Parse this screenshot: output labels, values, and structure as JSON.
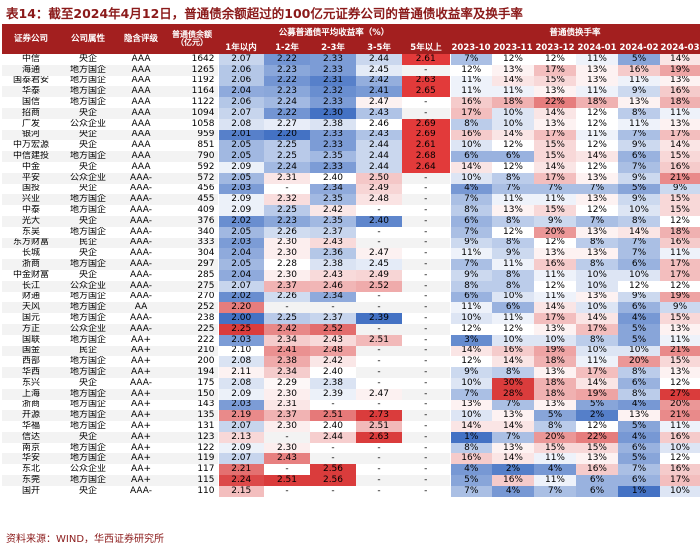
{
  "title": "表14：截至2024年4月12日，普通债余额超过的100亿元证券公司的普通债收益率及换手率",
  "headers": {
    "company": "证券公司",
    "attribute": "公司属性",
    "rating": "隐含评级",
    "balance": "普通债余额（亿元）",
    "yield_group": "公募普通债平均收益率（%）",
    "yield_cols": [
      "1年以内",
      "1-2年",
      "2-3年",
      "3-5年",
      "5年以上"
    ],
    "turnover_group": "普通债换手率",
    "turnover_cols": [
      "2023-10",
      "2023-11",
      "2023-12",
      "2024-01",
      "2024-02",
      "2024-03"
    ]
  },
  "rows": [
    {
      "company": "中信",
      "attr": "央企",
      "rating": "AAA",
      "balance": "1642",
      "yields": [
        "2.07",
        "2.22",
        "2.33",
        "2.44",
        "2.61"
      ],
      "turnover": [
        "7%",
        "12%",
        "12%",
        "11%",
        "5%",
        "14%"
      ]
    },
    {
      "company": "海通",
      "attr": "地方国企",
      "rating": "AAA",
      "balance": "1265",
      "yields": [
        "2.06",
        "2.23",
        "2.33",
        "2.45",
        "-"
      ],
      "turnover": [
        "12%",
        "13%",
        "17%",
        "13%",
        "16%",
        "19%"
      ]
    },
    {
      "company": "国泰君安",
      "attr": "地方国企",
      "rating": "AAA",
      "balance": "1192",
      "yields": [
        "2.06",
        "2.22",
        "2.31",
        "2.42",
        "2.63"
      ],
      "turnover": [
        "11%",
        "14%",
        "15%",
        "13%",
        "11%",
        "13%"
      ]
    },
    {
      "company": "华泰",
      "attr": "地方国企",
      "rating": "AAA",
      "balance": "1164",
      "yields": [
        "2.04",
        "2.23",
        "2.32",
        "2.41",
        "2.65"
      ],
      "turnover": [
        "11%",
        "11%",
        "13%",
        "11%",
        "9%",
        "16%"
      ]
    },
    {
      "company": "国信",
      "attr": "地方国企",
      "rating": "AAA",
      "balance": "1122",
      "yields": [
        "2.06",
        "2.24",
        "2.33",
        "2.47",
        "-"
      ],
      "turnover": [
        "16%",
        "18%",
        "22%",
        "18%",
        "13%",
        "18%"
      ]
    },
    {
      "company": "招商",
      "attr": "央企",
      "rating": "AAA",
      "balance": "1094",
      "yields": [
        "2.07",
        "2.22",
        "2.30",
        "2.43",
        "-"
      ],
      "turnover": [
        "17%",
        "10%",
        "14%",
        "12%",
        "8%",
        "11%"
      ]
    },
    {
      "company": "广发",
      "attr": "公众企业",
      "rating": "AAA",
      "balance": "1058",
      "yields": [
        "2.08",
        "2.27",
        "2.38",
        "2.46",
        "2.69"
      ],
      "turnover": [
        "8%",
        "10%",
        "13%",
        "12%",
        "11%",
        "13%"
      ]
    },
    {
      "company": "银河",
      "attr": "央企",
      "rating": "AAA",
      "balance": "959",
      "yields": [
        "2.01",
        "2.20",
        "2.33",
        "2.43",
        "2.69"
      ],
      "turnover": [
        "16%",
        "14%",
        "17%",
        "11%",
        "7%",
        "17%"
      ]
    },
    {
      "company": "中万宏源",
      "attr": "央企",
      "rating": "AAA",
      "balance": "851",
      "yields": [
        "2.05",
        "2.25",
        "2.33",
        "2.44",
        "2.61"
      ],
      "turnover": [
        "10%",
        "12%",
        "15%",
        "12%",
        "9%",
        "14%"
      ]
    },
    {
      "company": "中信建投",
      "attr": "地方国企",
      "rating": "AAA",
      "balance": "790",
      "yields": [
        "2.05",
        "2.25",
        "2.35",
        "2.44",
        "2.68"
      ],
      "turnover": [
        "6%",
        "6%",
        "15%",
        "14%",
        "6%",
        "15%"
      ]
    },
    {
      "company": "中金",
      "attr": "央企",
      "rating": "AAA",
      "balance": "592",
      "yields": [
        "2.09",
        "2.24",
        "2.33",
        "2.44",
        "2.64"
      ],
      "turnover": [
        "14%",
        "12%",
        "14%",
        "12%",
        "7%",
        "16%"
      ]
    },
    {
      "company": "平安",
      "attr": "公众企业",
      "rating": "AAA-",
      "balance": "572",
      "yields": [
        "2.05",
        "2.31",
        "2.40",
        "2.50",
        "-"
      ],
      "turnover": [
        "10%",
        "8%",
        "17%",
        "13%",
        "9%",
        "21%"
      ]
    },
    {
      "company": "国投",
      "attr": "央企",
      "rating": "AAA-",
      "balance": "456",
      "yields": [
        "2.03",
        "-",
        "2.34",
        "2.49",
        "-"
      ],
      "turnover": [
        "4%",
        "7%",
        "7%",
        "7%",
        "5%",
        "9%"
      ]
    },
    {
      "company": "兴业",
      "attr": "地方国企",
      "rating": "AAA-",
      "balance": "455",
      "yields": [
        "2.09",
        "2.32",
        "2.35",
        "2.48",
        "-"
      ],
      "turnover": [
        "7%",
        "11%",
        "11%",
        "13%",
        "9%",
        "15%"
      ]
    },
    {
      "company": "中泰",
      "attr": "地方国企",
      "rating": "AAA-",
      "balance": "409",
      "yields": [
        "2.09",
        "2.25",
        "2.42",
        "-",
        "-"
      ],
      "turnover": [
        "8%",
        "13%",
        "15%",
        "12%",
        "10%",
        "15%"
      ]
    },
    {
      "company": "光大",
      "attr": "央企",
      "rating": "AAA-",
      "balance": "376",
      "yields": [
        "2.02",
        "2.23",
        "2.35",
        "2.40",
        "-"
      ],
      "turnover": [
        "6%",
        "8%",
        "9%",
        "7%",
        "8%",
        "12%"
      ]
    },
    {
      "company": "东吴",
      "attr": "地方国企",
      "rating": "AAA-",
      "balance": "340",
      "yields": [
        "2.05",
        "2.26",
        "2.37",
        "-",
        "-"
      ],
      "turnover": [
        "7%",
        "12%",
        "20%",
        "13%",
        "14%",
        "18%"
      ]
    },
    {
      "company": "东方财富",
      "attr": "民企",
      "rating": "AAA-",
      "balance": "333",
      "yields": [
        "2.03",
        "2.30",
        "2.43",
        "-",
        "-"
      ],
      "turnover": [
        "9%",
        "8%",
        "12%",
        "8%",
        "7%",
        "16%"
      ]
    },
    {
      "company": "长城",
      "attr": "央企",
      "rating": "AAA-",
      "balance": "304",
      "yields": [
        "2.04",
        "2.30",
        "2.36",
        "2.47",
        "-"
      ],
      "turnover": [
        "11%",
        "9%",
        "13%",
        "13%",
        "7%",
        "11%"
      ]
    },
    {
      "company": "浙商",
      "attr": "地方国企",
      "rating": "AAA-",
      "balance": "297",
      "yields": [
        "2.05",
        "2.28",
        "2.38",
        "2.45",
        "-"
      ],
      "turnover": [
        "7%",
        "11%",
        "16%",
        "8%",
        "6%",
        "17%"
      ]
    },
    {
      "company": "中金财富",
      "attr": "央企",
      "rating": "AAA-",
      "balance": "285",
      "yields": [
        "2.04",
        "2.30",
        "2.43",
        "2.49",
        "-"
      ],
      "turnover": [
        "9%",
        "8%",
        "11%",
        "10%",
        "10%",
        "17%"
      ]
    },
    {
      "company": "长江",
      "attr": "公众企业",
      "rating": "AAA-",
      "balance": "275",
      "yields": [
        "2.07",
        "2.37",
        "2.46",
        "2.52",
        "-"
      ],
      "turnover": [
        "8%",
        "8%",
        "12%",
        "10%",
        "12%",
        "12%"
      ]
    },
    {
      "company": "财通",
      "attr": "地方国企",
      "rating": "AAA-",
      "balance": "270",
      "yields": [
        "2.02",
        "2.26",
        "2.34",
        "-",
        "-"
      ],
      "turnover": [
        "6%",
        "10%",
        "11%",
        "13%",
        "9%",
        "19%"
      ]
    },
    {
      "company": "天风",
      "attr": "地方国企",
      "rating": "AA",
      "balance": "252",
      "yields": [
        "2.20",
        "-",
        "-",
        "-",
        "-"
      ],
      "turnover": [
        "11%",
        "6%",
        "14%",
        "10%",
        "6%",
        "9%"
      ]
    },
    {
      "company": "国元",
      "attr": "地方国企",
      "rating": "AAA-",
      "balance": "238",
      "yields": [
        "2.00",
        "2.25",
        "2.37",
        "2.39",
        "-"
      ],
      "turnover": [
        "10%",
        "11%",
        "17%",
        "14%",
        "4%",
        "15%"
      ]
    },
    {
      "company": "方正",
      "attr": "公众企业",
      "rating": "AAA-",
      "balance": "225",
      "yields": [
        "2.25",
        "2.42",
        "2.52",
        "-",
        "-"
      ],
      "turnover": [
        "12%",
        "12%",
        "13%",
        "17%",
        "5%",
        "13%"
      ]
    },
    {
      "company": "国联",
      "attr": "地方国企",
      "rating": "AA+",
      "balance": "222",
      "yields": [
        "2.03",
        "2.34",
        "2.43",
        "2.51",
        "-"
      ],
      "turnover": [
        "3%",
        "10%",
        "10%",
        "8%",
        "5%",
        "11%"
      ]
    },
    {
      "company": "国金",
      "attr": "民企",
      "rating": "AA+",
      "balance": "210",
      "yields": [
        "2.10",
        "2.41",
        "2.48",
        "-",
        "-"
      ],
      "turnover": [
        "14%",
        "16%",
        "19%",
        "10%",
        "10%",
        "21%"
      ]
    },
    {
      "company": "西部",
      "attr": "地方国企",
      "rating": "AA+",
      "balance": "200",
      "yields": [
        "2.08",
        "2.38",
        "2.42",
        "-",
        "-"
      ],
      "turnover": [
        "12%",
        "14%",
        "18%",
        "11%",
        "20%",
        "15%"
      ]
    },
    {
      "company": "华西",
      "attr": "地方国企",
      "rating": "AA+",
      "balance": "194",
      "yields": [
        "2.11",
        "2.34",
        "2.40",
        "-",
        "-"
      ],
      "turnover": [
        "9%",
        "8%",
        "13%",
        "17%",
        "8%",
        "13%"
      ]
    },
    {
      "company": "东兴",
      "attr": "央企",
      "rating": "AAA-",
      "balance": "175",
      "yields": [
        "2.08",
        "2.29",
        "2.38",
        "-",
        "-"
      ],
      "turnover": [
        "10%",
        "30%",
        "18%",
        "14%",
        "6%",
        "12%"
      ]
    },
    {
      "company": "上海",
      "attr": "地方国企",
      "rating": "AA+",
      "balance": "150",
      "yields": [
        "2.09",
        "2.30",
        "2.39",
        "2.47",
        "-"
      ],
      "turnover": [
        "7%",
        "28%",
        "18%",
        "19%",
        "8%",
        "27%"
      ]
    },
    {
      "company": "浙商",
      "attr": "地方国企",
      "rating": "AA+",
      "balance": "143",
      "yields": [
        "2.03",
        "2.31",
        "-",
        "-",
        "-"
      ],
      "turnover": [
        "13%",
        "7%",
        "13%",
        "5%",
        "4%",
        "20%"
      ]
    },
    {
      "company": "开源",
      "attr": "地方国企",
      "rating": "AA+",
      "balance": "135",
      "yields": [
        "2.19",
        "2.37",
        "2.51",
        "2.73",
        "-"
      ],
      "turnover": [
        "10%",
        "13%",
        "5%",
        "2%",
        "13%",
        "21%"
      ]
    },
    {
      "company": "华福",
      "attr": "地方国企",
      "rating": "AA+",
      "balance": "131",
      "yields": [
        "2.07",
        "2.30",
        "2.40",
        "2.51",
        "-"
      ],
      "turnover": [
        "14%",
        "14%",
        "8%",
        "12%",
        "5%",
        "11%"
      ]
    },
    {
      "company": "信达",
      "attr": "央企",
      "rating": "AA+",
      "balance": "123",
      "yields": [
        "2.13",
        "-",
        "2.44",
        "2.63",
        "-"
      ],
      "turnover": [
        "1%",
        "7%",
        "20%",
        "22%",
        "4%",
        "16%"
      ]
    },
    {
      "company": "南京",
      "attr": "地方国企",
      "rating": "AA+",
      "balance": "122",
      "yields": [
        "2.09",
        "2.30",
        "-",
        "-",
        "-"
      ],
      "turnover": [
        "8%",
        "13%",
        "15%",
        "15%",
        "6%",
        "10%"
      ]
    },
    {
      "company": "华安",
      "attr": "地方国企",
      "rating": "AA+",
      "balance": "119",
      "yields": [
        "2.07",
        "2.43",
        "-",
        "-",
        "-"
      ],
      "turnover": [
        "16%",
        "14%",
        "11%",
        "13%",
        "5%",
        "12%"
      ]
    },
    {
      "company": "东北",
      "attr": "公众企业",
      "rating": "AA+",
      "balance": "117",
      "yields": [
        "2.21",
        "-",
        "2.56",
        "-",
        "-"
      ],
      "turnover": [
        "4%",
        "2%",
        "4%",
        "16%",
        "7%",
        "16%"
      ]
    },
    {
      "company": "东莞",
      "attr": "地方国企",
      "rating": "AA+",
      "balance": "115",
      "yields": [
        "2.24",
        "2.51",
        "2.56",
        "-",
        "-"
      ],
      "turnover": [
        "5%",
        "16%",
        "11%",
        "6%",
        "6%",
        "17%"
      ]
    },
    {
      "company": "国开",
      "attr": "央企",
      "rating": "AAA-",
      "balance": "110",
      "yields": [
        "2.15",
        "-",
        "-",
        "-",
        "-"
      ],
      "turnover": [
        "7%",
        "4%",
        "7%",
        "6%",
        "1%",
        "10%"
      ]
    }
  ],
  "footer": "资料来源：WIND，华西证券研究所"
}
